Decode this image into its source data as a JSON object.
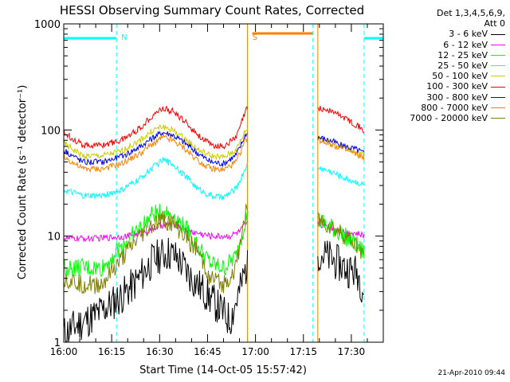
{
  "chart_data": {
    "type": "line",
    "title": "HESSI Observing Summary Count Rates, Corrected",
    "xlabel": "Start Time (14-Oct-05 15:57:42)",
    "ylabel": "Corrected Count Rate (s⁻¹ detector⁻¹)",
    "x_ticks": [
      "16:00",
      "16:15",
      "16:30",
      "16:45",
      "17:00",
      "17:15",
      "17:30"
    ],
    "x_tick_minutes": [
      0,
      15,
      30,
      45,
      60,
      75,
      90
    ],
    "xlim_minutes": [
      0,
      100
    ],
    "y_scale": "log",
    "ylim": [
      1,
      1000
    ],
    "y_ticks": [
      "1",
      "10",
      "100",
      "1000"
    ],
    "y_tick_values": [
      1,
      10,
      100,
      1000
    ],
    "legend_header": [
      "Det 1,3,4,5,6,9,",
      "Att 0"
    ],
    "legend_position": "right",
    "annotations": [
      {
        "text": "N",
        "x": 16.5,
        "color": "#00ffff"
      },
      {
        "text": "S",
        "x": 57.5,
        "color": "#ff8000"
      }
    ],
    "flags": [
      {
        "name": "night",
        "color": "#00ffff",
        "ranges": [
          [
            0,
            16.5
          ],
          [
            94,
            100
          ]
        ]
      },
      {
        "name": "saa",
        "color": "#ff8000",
        "ranges": [
          [
            59,
            78
          ]
        ]
      }
    ],
    "vlines": [
      {
        "x": 16.5,
        "color": "#00ffff",
        "dashed": true
      },
      {
        "x": 57.5,
        "color": "#ff8000",
        "dashed": false
      },
      {
        "x": 78,
        "color": "#00ffff",
        "dashed": true
      },
      {
        "x": 79.5,
        "color": "#ff8000",
        "dashed": false
      },
      {
        "x": 94,
        "color": "#00ffff",
        "dashed": true
      }
    ],
    "segments": [
      [
        0,
        57.5
      ],
      [
        79.5,
        94
      ]
    ],
    "series": [
      {
        "name": "3 - 6 keV",
        "color": "#000000",
        "x": [
          0,
          5,
          10,
          14,
          18,
          22,
          26,
          28,
          30,
          33,
          36,
          40,
          44,
          48,
          52,
          55,
          57,
          80,
          84,
          88,
          92,
          94
        ],
        "y": [
          1.2,
          1.5,
          1.8,
          2.2,
          2.7,
          3.5,
          5,
          6,
          6.5,
          7,
          6,
          4,
          3,
          2.2,
          1.6,
          3,
          5,
          7,
          6,
          5,
          4.5,
          3
        ]
      },
      {
        "name": "6 - 12 keV",
        "color": "#ff00ff",
        "x": [
          0,
          10,
          20,
          26,
          30,
          33,
          36,
          40,
          46,
          52,
          55,
          57,
          80,
          84,
          88,
          92,
          94
        ],
        "y": [
          9.5,
          9.5,
          10,
          11,
          12.5,
          13,
          12.5,
          11,
          10,
          10,
          11,
          13,
          13,
          12,
          11,
          10.5,
          10
        ]
      },
      {
        "name": "12 - 25 keV",
        "color": "#00ff00",
        "x": [
          0,
          6,
          12,
          18,
          24,
          28,
          31,
          34,
          38,
          42,
          46,
          50,
          54,
          57,
          80,
          84,
          88,
          92,
          94
        ],
        "y": [
          5,
          5,
          5,
          8,
          12,
          16,
          17,
          16,
          12,
          8,
          5.5,
          5,
          6.5,
          15,
          14,
          12,
          10,
          8,
          7
        ]
      },
      {
        "name": "25 - 50 keV",
        "color": "#00ffff",
        "x": [
          0,
          6,
          12,
          18,
          24,
          28,
          31,
          34,
          38,
          42,
          46,
          50,
          54,
          57,
          80,
          84,
          88,
          92,
          94
        ],
        "y": [
          27,
          24,
          24,
          27,
          35,
          45,
          52,
          48,
          37,
          28,
          24,
          23,
          28,
          45,
          44,
          40,
          35,
          32,
          30
        ]
      },
      {
        "name": "50 - 100 keV",
        "color": "#cccc00",
        "x": [
          0,
          6,
          12,
          18,
          24,
          28,
          31,
          34,
          38,
          42,
          46,
          50,
          54,
          57,
          80,
          84,
          88,
          92,
          94
        ],
        "y": [
          75,
          57,
          57,
          63,
          80,
          100,
          108,
          100,
          82,
          65,
          57,
          55,
          65,
          100,
          85,
          75,
          68,
          62,
          57
        ]
      },
      {
        "name": "100 - 300 keV",
        "color": "#ff0000",
        "x": [
          0,
          6,
          12,
          18,
          24,
          28,
          31,
          34,
          38,
          42,
          46,
          50,
          54,
          57,
          80,
          84,
          88,
          92,
          94
        ],
        "y": [
          95,
          72,
          72,
          80,
          105,
          140,
          160,
          150,
          120,
          90,
          72,
          70,
          85,
          155,
          160,
          150,
          130,
          110,
          97
        ]
      },
      {
        "name": "300 - 800 keV",
        "color": "#0000ff",
        "x": [
          0,
          6,
          12,
          18,
          24,
          28,
          31,
          34,
          38,
          42,
          46,
          50,
          54,
          57,
          80,
          84,
          88,
          92,
          94
        ],
        "y": [
          65,
          50,
          50,
          56,
          70,
          85,
          95,
          90,
          75,
          60,
          50,
          48,
          58,
          92,
          85,
          78,
          70,
          65,
          60
        ]
      },
      {
        "name": "800 - 7000 keV",
        "color": "#ff8000",
        "x": [
          0,
          6,
          12,
          18,
          24,
          28,
          31,
          34,
          38,
          42,
          46,
          50,
          54,
          57,
          80,
          84,
          88,
          92,
          94
        ],
        "y": [
          56,
          43,
          43,
          48,
          60,
          75,
          85,
          80,
          66,
          52,
          43,
          42,
          50,
          83,
          80,
          73,
          65,
          58,
          55
        ]
      },
      {
        "name": "7000 - 20000 keV",
        "color": "#808000",
        "x": [
          0,
          6,
          12,
          18,
          24,
          28,
          31,
          34,
          38,
          42,
          46,
          50,
          54,
          57,
          80,
          84,
          88,
          92,
          94
        ],
        "y": [
          4,
          3.5,
          3.5,
          6,
          10,
          13,
          14,
          13,
          10,
          7,
          4,
          3.5,
          5,
          18,
          14,
          12,
          10,
          8,
          7
        ]
      }
    ]
  },
  "footer": {
    "date": "21-Apr-2010 09:44"
  }
}
